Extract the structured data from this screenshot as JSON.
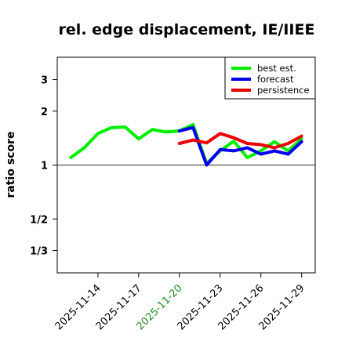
{
  "chart_data": {
    "type": "line",
    "title": "rel. edge displacement, IE/IIEE",
    "ylabel": "ratio score",
    "y_scale": "log",
    "ylim": [
      0.25,
      4
    ],
    "reference_line": 1,
    "yticks": [
      {
        "value": 3,
        "label": "3"
      },
      {
        "value": 2,
        "label": "2"
      },
      {
        "value": 1,
        "label": "1"
      },
      {
        "value": 0.5,
        "label": "1/2"
      },
      {
        "value": 0.3333,
        "label": "1/3"
      }
    ],
    "xticks": [
      {
        "date": "2025-11-14",
        "label": "2025-11-14",
        "color": "#000000"
      },
      {
        "date": "2025-11-17",
        "label": "2025-11-17",
        "color": "#000000"
      },
      {
        "date": "2025-11-20",
        "label": "2025-11-20",
        "color": "#228B22"
      },
      {
        "date": "2025-11-23",
        "label": "2025-11-23",
        "color": "#000000"
      },
      {
        "date": "2025-11-26",
        "label": "2025-11-26",
        "color": "#000000"
      },
      {
        "date": "2025-11-29",
        "label": "2025-11-29",
        "color": "#000000"
      }
    ],
    "xlim": [
      "2025-11-11",
      "2025-11-30"
    ],
    "legend_position": "top-right",
    "series": [
      {
        "name": "best est.",
        "color": "#00ee00",
        "x": [
          "2025-11-12",
          "2025-11-13",
          "2025-11-14",
          "2025-11-15",
          "2025-11-16",
          "2025-11-17",
          "2025-11-18",
          "2025-11-19",
          "2025-11-20",
          "2025-11-21",
          "2025-11-22",
          "2025-11-23",
          "2025-11-24",
          "2025-11-25",
          "2025-11-26",
          "2025-11-27",
          "2025-11-28",
          "2025-11-29"
        ],
        "y": [
          1.1,
          1.25,
          1.5,
          1.62,
          1.63,
          1.4,
          1.58,
          1.53,
          1.55,
          1.68,
          1.02,
          1.2,
          1.36,
          1.1,
          1.2,
          1.35,
          1.2,
          1.4
        ]
      },
      {
        "name": "forecast",
        "color": "#0000ee",
        "x": [
          "2025-11-20",
          "2025-11-21",
          "2025-11-22",
          "2025-11-23",
          "2025-11-24",
          "2025-11-25",
          "2025-11-26",
          "2025-11-27",
          "2025-11-28",
          "2025-11-29"
        ],
        "y": [
          1.55,
          1.62,
          1.0,
          1.22,
          1.2,
          1.25,
          1.15,
          1.2,
          1.15,
          1.35
        ]
      },
      {
        "name": "persistence",
        "color": "#ee0000",
        "x": [
          "2025-11-20",
          "2025-11-21",
          "2025-11-22",
          "2025-11-23",
          "2025-11-24",
          "2025-11-25",
          "2025-11-26",
          "2025-11-27",
          "2025-11-28",
          "2025-11-29"
        ],
        "y": [
          1.32,
          1.38,
          1.33,
          1.5,
          1.42,
          1.32,
          1.3,
          1.25,
          1.32,
          1.45
        ]
      }
    ]
  }
}
